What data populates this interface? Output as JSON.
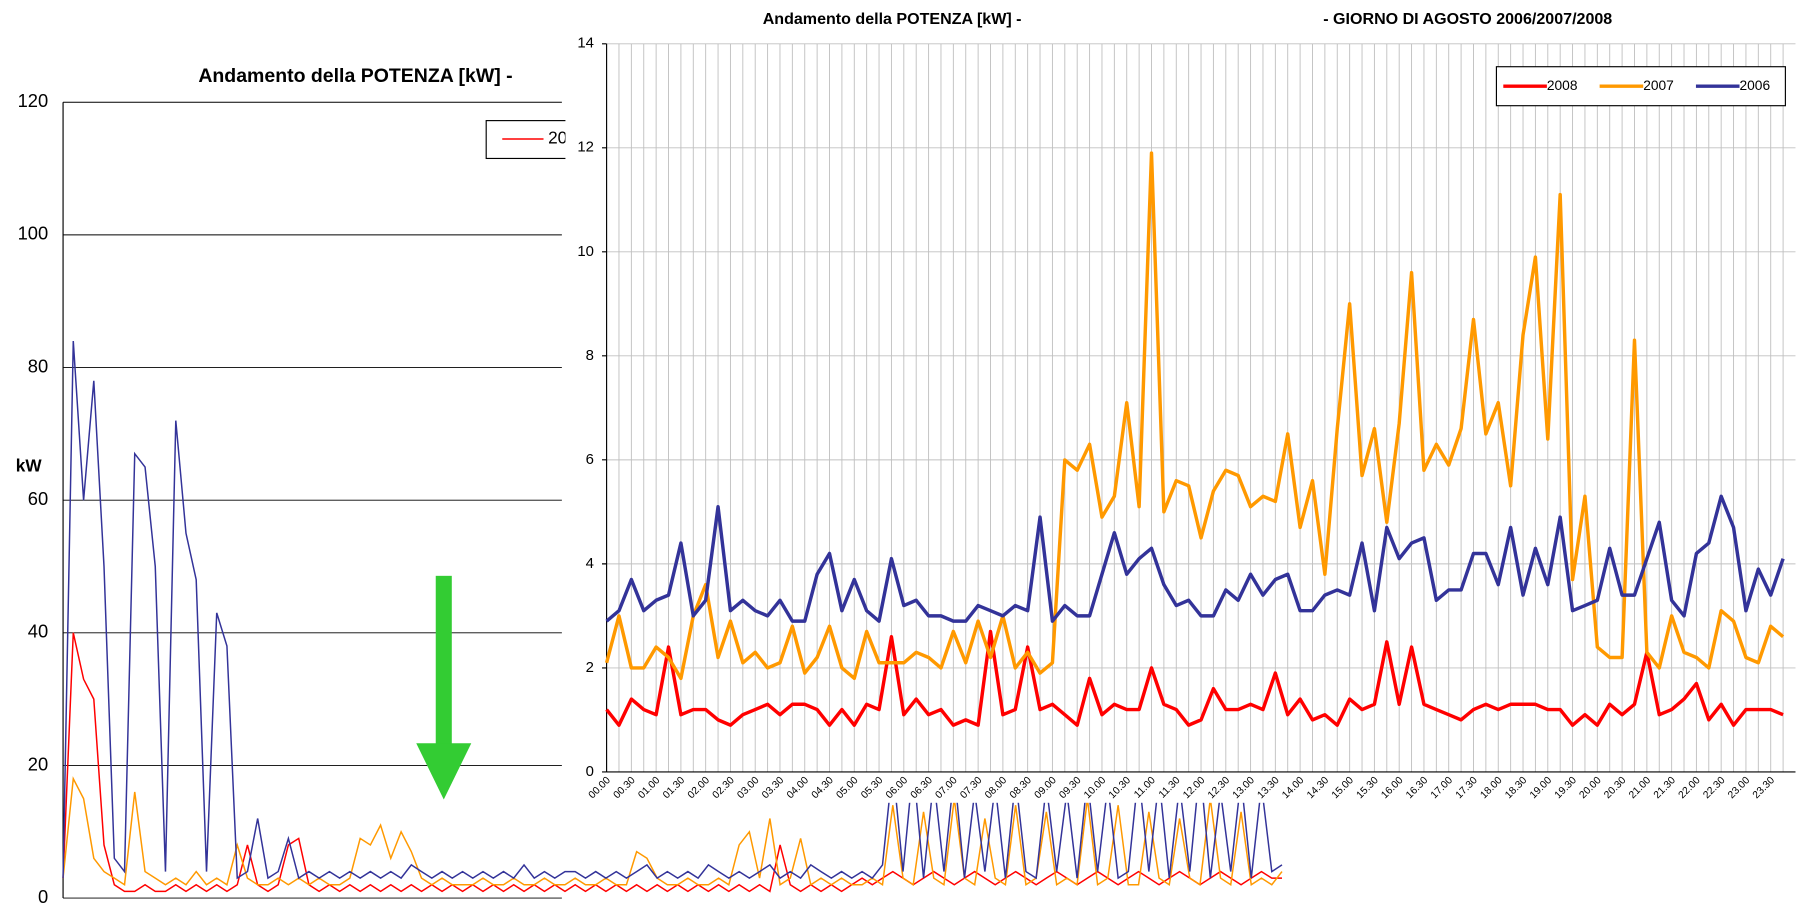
{
  "chart_data": [
    {
      "type": "line",
      "title": "Andamento della POTENZA [kW] -",
      "y_label": "kW",
      "ylim": [
        0,
        120
      ],
      "yticks": [
        0,
        20,
        40,
        60,
        80,
        100,
        120
      ],
      "grid": true,
      "legend": "upper right",
      "series": [
        {
          "name": "2008",
          "color": "#ff0000",
          "values": [
            3,
            40,
            33,
            30,
            8,
            2,
            1,
            1,
            2,
            1,
            1,
            2,
            1,
            2,
            1,
            2,
            1,
            2,
            8,
            2,
            1,
            2,
            8,
            9,
            2,
            1,
            2,
            1,
            2,
            1,
            2,
            1,
            2,
            1,
            2,
            1,
            2,
            1,
            2,
            1,
            2,
            1,
            2,
            1,
            2,
            1,
            2,
            1,
            2,
            1,
            2,
            1,
            2,
            1,
            2,
            1,
            2,
            1,
            2,
            1,
            2,
            1,
            2,
            1,
            2,
            1,
            2,
            1,
            2,
            1,
            8,
            2,
            1,
            2,
            1,
            2,
            1,
            2,
            3,
            2,
            3,
            4,
            3,
            2,
            3,
            4,
            3,
            2,
            3,
            4,
            3,
            2,
            3,
            4,
            3,
            2,
            3,
            4,
            3,
            2,
            3,
            4,
            3,
            2,
            3,
            4,
            3,
            2,
            3,
            4,
            3,
            2,
            3,
            4,
            3,
            2,
            3,
            4,
            3,
            3
          ]
        },
        {
          "name": "2007",
          "color": "#ff9900",
          "values": [
            3,
            18,
            15,
            6,
            4,
            3,
            2,
            16,
            4,
            3,
            2,
            3,
            2,
            4,
            2,
            3,
            2,
            8,
            3,
            2,
            2,
            3,
            2,
            3,
            2,
            3,
            2,
            2,
            3,
            9,
            8,
            11,
            6,
            10,
            7,
            3,
            2,
            3,
            2,
            2,
            2,
            3,
            2,
            2,
            3,
            2,
            2,
            3,
            2,
            2,
            3,
            2,
            2,
            3,
            2,
            2,
            7,
            6,
            3,
            2,
            2,
            3,
            2,
            2,
            3,
            2,
            8,
            10,
            3,
            12,
            2,
            3,
            9,
            2,
            3,
            2,
            3,
            2,
            2,
            3,
            2,
            14,
            3,
            2,
            13,
            3,
            2,
            15,
            3,
            2,
            12,
            3,
            2,
            14,
            2,
            3,
            13,
            2,
            3,
            2,
            15,
            2,
            3,
            14,
            2,
            2,
            13,
            3,
            2,
            12,
            3,
            2,
            15,
            3,
            2,
            13,
            2,
            3,
            2,
            4
          ]
        },
        {
          "name": "2006",
          "color": "#333399",
          "values": [
            3,
            84,
            60,
            78,
            50,
            6,
            4,
            67,
            65,
            50,
            4,
            72,
            55,
            48,
            4,
            43,
            38,
            3,
            4,
            12,
            3,
            4,
            9,
            3,
            4,
            3,
            4,
            3,
            4,
            3,
            4,
            3,
            4,
            3,
            5,
            4,
            3,
            4,
            3,
            4,
            3,
            4,
            3,
            4,
            3,
            5,
            3,
            4,
            3,
            4,
            4,
            3,
            4,
            3,
            4,
            3,
            4,
            5,
            3,
            4,
            3,
            4,
            3,
            5,
            4,
            3,
            4,
            3,
            4,
            5,
            3,
            4,
            3,
            5,
            4,
            3,
            4,
            3,
            4,
            3,
            5,
            20,
            4,
            20,
            3,
            18,
            4,
            19,
            3,
            16,
            4,
            17,
            3,
            18,
            4,
            3,
            17,
            4,
            16,
            3,
            18,
            4,
            17,
            3,
            4,
            19,
            4,
            18,
            3,
            17,
            4,
            20,
            3,
            16,
            4,
            18,
            3,
            17,
            4,
            5
          ]
        }
      ]
    },
    {
      "type": "line",
      "title": [
        "Andamento della POTENZA [kW] -",
        "- GIORNO DI AGOSTO 2006/2007/2008"
      ],
      "ylim": [
        0,
        14
      ],
      "yticks": [
        0,
        2,
        4,
        6,
        8,
        10,
        12,
        14
      ],
      "grid": true,
      "legend": "upper right",
      "categories": [
        "00.00",
        null,
        "00.30",
        null,
        "01.00",
        null,
        "01.30",
        null,
        "02.00",
        null,
        "02.30",
        null,
        "03.00",
        null,
        "03.30",
        null,
        "04.00",
        null,
        "04.30",
        null,
        "05.00",
        null,
        "05.30",
        null,
        "06.00",
        null,
        "06.30",
        null,
        "07.00",
        null,
        "07.30",
        null,
        "08.00",
        null,
        "08.30",
        null,
        "09.00",
        null,
        "09.30",
        null,
        "10.00",
        null,
        "10.30",
        null,
        "11.00",
        null,
        "11.30",
        null,
        "12.00",
        null,
        "12.30",
        null,
        "13.00",
        null,
        "13.30",
        null,
        "14.00",
        null,
        "14.30",
        null,
        "15.00",
        null,
        "15.30",
        null,
        "16.00",
        null,
        "16.30",
        null,
        "17.00",
        null,
        "17.30",
        null,
        "18.00",
        null,
        "18.30",
        null,
        "19.00",
        null,
        "19.30",
        null,
        "20.00",
        null,
        "20.30",
        null,
        "21.00",
        null,
        "21.30",
        null,
        "22.00",
        null,
        "22.30",
        null,
        "23.00",
        null,
        "23.30",
        null
      ],
      "series": [
        {
          "name": "2008",
          "color": "#ff0000",
          "values": [
            1.2,
            0.9,
            1.4,
            1.2,
            1.1,
            2.4,
            1.1,
            1.2,
            1.2,
            1.0,
            0.9,
            1.1,
            1.2,
            1.3,
            1.1,
            1.3,
            1.3,
            1.2,
            0.9,
            1.2,
            0.9,
            1.3,
            1.2,
            2.6,
            1.1,
            1.4,
            1.1,
            1.2,
            0.9,
            1.0,
            0.9,
            2.7,
            1.1,
            1.2,
            2.4,
            1.2,
            1.3,
            1.1,
            0.9,
            1.8,
            1.1,
            1.3,
            1.2,
            1.2,
            2.0,
            1.3,
            1.2,
            0.9,
            1.0,
            1.6,
            1.2,
            1.2,
            1.3,
            1.2,
            1.9,
            1.1,
            1.4,
            1.0,
            1.1,
            0.9,
            1.4,
            1.2,
            1.3,
            2.5,
            1.3,
            2.4,
            1.3,
            1.2,
            1.1,
            1.0,
            1.2,
            1.3,
            1.2,
            1.3,
            1.3,
            1.3,
            1.2,
            1.2,
            0.9,
            1.1,
            0.9,
            1.3,
            1.1,
            1.3,
            2.3,
            1.1,
            1.2,
            1.4,
            1.7,
            1.0,
            1.3,
            0.9,
            1.2,
            1.2,
            1.2,
            1.1
          ]
        },
        {
          "name": "2007",
          "color": "#ff9900",
          "values": [
            2.1,
            3.0,
            2.0,
            2.0,
            2.4,
            2.2,
            1.8,
            3.0,
            3.6,
            2.2,
            2.9,
            2.1,
            2.3,
            2.0,
            2.1,
            2.8,
            1.9,
            2.2,
            2.8,
            2.0,
            1.8,
            2.7,
            2.1,
            2.1,
            2.1,
            2.3,
            2.2,
            2.0,
            2.7,
            2.1,
            2.9,
            2.2,
            3.0,
            2.0,
            2.3,
            1.9,
            2.1,
            6.0,
            5.8,
            6.3,
            4.9,
            5.3,
            7.1,
            5.1,
            11.9,
            5.0,
            5.6,
            5.5,
            4.5,
            5.4,
            5.8,
            5.7,
            5.1,
            5.3,
            5.2,
            6.5,
            4.7,
            5.6,
            3.8,
            6.6,
            9.0,
            5.7,
            6.6,
            4.8,
            6.7,
            9.6,
            5.8,
            6.3,
            5.9,
            6.6,
            8.7,
            6.5,
            7.1,
            5.5,
            8.4,
            9.9,
            6.4,
            11.1,
            3.7,
            5.3,
            2.4,
            2.2,
            2.2,
            8.3,
            2.3,
            2.0,
            3.0,
            2.3,
            2.2,
            2.0,
            3.1,
            2.9,
            2.2,
            2.1,
            2.8,
            2.6
          ]
        },
        {
          "name": "2006",
          "color": "#333399",
          "values": [
            2.9,
            3.1,
            3.7,
            3.1,
            3.3,
            3.4,
            4.4,
            3.0,
            3.3,
            5.1,
            3.1,
            3.3,
            3.1,
            3.0,
            3.3,
            2.9,
            2.9,
            3.8,
            4.2,
            3.1,
            3.7,
            3.1,
            2.9,
            4.1,
            3.2,
            3.3,
            3.0,
            3.0,
            2.9,
            2.9,
            3.2,
            3.1,
            3.0,
            3.2,
            3.1,
            4.9,
            2.9,
            3.2,
            3.0,
            3.0,
            3.8,
            4.6,
            3.8,
            4.1,
            4.3,
            3.6,
            3.2,
            3.3,
            3.0,
            3.0,
            3.5,
            3.3,
            3.8,
            3.4,
            3.7,
            3.8,
            3.1,
            3.1,
            3.4,
            3.5,
            3.4,
            4.4,
            3.1,
            4.7,
            4.1,
            4.4,
            4.5,
            3.3,
            3.5,
            3.5,
            4.2,
            4.2,
            3.6,
            4.7,
            3.4,
            4.3,
            3.6,
            4.9,
            3.1,
            3.2,
            3.3,
            4.3,
            3.4,
            3.4,
            4.1,
            4.8,
            3.3,
            3.0,
            4.2,
            4.4,
            5.3,
            4.7,
            3.1,
            3.9,
            3.4,
            4.1
          ]
        }
      ]
    }
  ]
}
